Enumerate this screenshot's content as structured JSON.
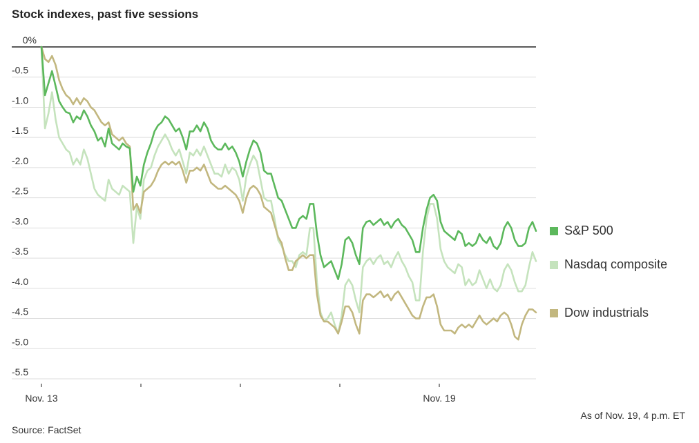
{
  "chart_data": {
    "type": "line",
    "title": "Stock indexes, past five sessions",
    "ylim": [
      -5.5,
      0
    ],
    "yticks": [
      {
        "value": 0,
        "label": "0%"
      },
      {
        "value": -0.5,
        "label": "-0.5"
      },
      {
        "value": -1.0,
        "label": "-1.0"
      },
      {
        "value": -1.5,
        "label": "-1.5"
      },
      {
        "value": -2.0,
        "label": "-2.0"
      },
      {
        "value": -2.5,
        "label": "-2.5"
      },
      {
        "value": -3.0,
        "label": "-3.0"
      },
      {
        "value": -3.5,
        "label": "-3.5"
      },
      {
        "value": -4.0,
        "label": "-4.0"
      },
      {
        "value": -4.5,
        "label": "-4.5"
      },
      {
        "value": -5.0,
        "label": "-5.0"
      },
      {
        "value": -5.5,
        "label": "-5.5"
      }
    ],
    "sessions": 5,
    "session_labels": [
      "Nov. 13",
      "",
      "",
      "",
      "Nov. 19"
    ],
    "series": [
      {
        "name": "S&P 500",
        "color": "#5cb85c",
        "values": [
          0,
          -0.8,
          -0.6,
          -0.4,
          -0.65,
          -0.9,
          -1.0,
          -1.08,
          -1.1,
          -1.25,
          -1.15,
          -1.2,
          -1.05,
          -1.15,
          -1.3,
          -1.4,
          -1.55,
          -1.5,
          -1.65,
          -1.35,
          -1.6,
          -1.65,
          -1.7,
          -1.6,
          -1.65,
          -1.68,
          -2.4,
          -2.15,
          -2.3,
          -1.95,
          -1.75,
          -1.6,
          -1.4,
          -1.3,
          -1.25,
          -1.15,
          -1.2,
          -1.3,
          -1.4,
          -1.35,
          -1.5,
          -1.7,
          -1.4,
          -1.4,
          -1.3,
          -1.4,
          -1.25,
          -1.35,
          -1.55,
          -1.65,
          -1.7,
          -1.7,
          -1.6,
          -1.7,
          -1.65,
          -1.75,
          -1.9,
          -2.15,
          -1.9,
          -1.7,
          -1.55,
          -1.6,
          -1.75,
          -2.05,
          -2.1,
          -2.1,
          -2.3,
          -2.5,
          -2.55,
          -2.7,
          -2.85,
          -3.0,
          -3.0,
          -2.85,
          -2.8,
          -2.85,
          -2.6,
          -2.6,
          -3.1,
          -3.45,
          -3.65,
          -3.6,
          -3.55,
          -3.7,
          -3.85,
          -3.6,
          -3.2,
          -3.15,
          -3.25,
          -3.45,
          -3.6,
          -3.0,
          -2.9,
          -2.88,
          -2.95,
          -2.9,
          -2.85,
          -2.95,
          -2.9,
          -3.0,
          -2.9,
          -2.85,
          -2.95,
          -3.0,
          -3.1,
          -3.2,
          -3.4,
          -3.4,
          -3.0,
          -2.7,
          -2.5,
          -2.45,
          -2.55,
          -2.9,
          -3.05,
          -3.1,
          -3.15,
          -3.2,
          -3.05,
          -3.1,
          -3.3,
          -3.25,
          -3.3,
          -3.25,
          -3.1,
          -3.2,
          -3.25,
          -3.15,
          -3.3,
          -3.35,
          -3.25,
          -3.0,
          -2.9,
          -3.0,
          -3.2,
          -3.3,
          -3.3,
          -3.25,
          -3.0,
          -2.9,
          -3.05
        ]
      },
      {
        "name": "Nasdaq composite",
        "color": "#c5e3bd",
        "values": [
          0,
          -1.35,
          -1.1,
          -0.75,
          -1.2,
          -1.5,
          -1.6,
          -1.7,
          -1.75,
          -1.95,
          -1.85,
          -1.95,
          -1.7,
          -1.85,
          -2.1,
          -2.35,
          -2.45,
          -2.5,
          -2.55,
          -2.2,
          -2.35,
          -2.4,
          -2.45,
          -2.3,
          -2.35,
          -2.4,
          -3.25,
          -2.65,
          -2.85,
          -2.2,
          -2.05,
          -2.0,
          -1.8,
          -1.65,
          -1.55,
          -1.45,
          -1.55,
          -1.7,
          -1.8,
          -1.7,
          -1.9,
          -2.1,
          -1.75,
          -1.8,
          -1.7,
          -1.8,
          -1.65,
          -1.8,
          -1.95,
          -2.1,
          -2.1,
          -2.15,
          -1.95,
          -2.1,
          -2.0,
          -2.05,
          -2.2,
          -2.55,
          -2.15,
          -1.95,
          -1.8,
          -1.9,
          -2.2,
          -2.5,
          -2.55,
          -2.55,
          -2.85,
          -3.2,
          -3.3,
          -3.45,
          -3.55,
          -3.55,
          -3.65,
          -3.45,
          -3.4,
          -3.45,
          -3.0,
          -3.0,
          -3.9,
          -4.4,
          -4.55,
          -4.5,
          -4.4,
          -4.6,
          -4.75,
          -4.45,
          -3.95,
          -3.85,
          -3.95,
          -4.2,
          -4.4,
          -3.65,
          -3.55,
          -3.5,
          -3.6,
          -3.5,
          -3.45,
          -3.6,
          -3.55,
          -3.65,
          -3.5,
          -3.4,
          -3.55,
          -3.65,
          -3.8,
          -3.9,
          -4.2,
          -4.2,
          -3.4,
          -2.85,
          -2.6,
          -2.6,
          -2.85,
          -3.35,
          -3.55,
          -3.65,
          -3.7,
          -3.75,
          -3.6,
          -3.65,
          -3.95,
          -3.85,
          -3.95,
          -3.9,
          -3.7,
          -3.85,
          -4.0,
          -3.85,
          -4.0,
          -4.05,
          -3.95,
          -3.7,
          -3.6,
          -3.7,
          -3.9,
          -4.05,
          -4.05,
          -3.95,
          -3.65,
          -3.4,
          -3.55
        ]
      },
      {
        "name": "Dow industrials",
        "color": "#c2b77f",
        "values": [
          0,
          -0.2,
          -0.25,
          -0.15,
          -0.3,
          -0.55,
          -0.7,
          -0.8,
          -0.85,
          -0.95,
          -0.85,
          -0.95,
          -0.85,
          -0.9,
          -1.0,
          -1.05,
          -1.15,
          -1.25,
          -1.3,
          -1.25,
          -1.45,
          -1.5,
          -1.55,
          -1.5,
          -1.6,
          -1.65,
          -2.7,
          -2.6,
          -2.75,
          -2.4,
          -2.35,
          -2.3,
          -2.2,
          -2.05,
          -1.95,
          -1.9,
          -1.95,
          -1.9,
          -1.95,
          -1.9,
          -2.05,
          -2.25,
          -2.05,
          -2.05,
          -2.0,
          -2.05,
          -1.95,
          -2.1,
          -2.25,
          -2.3,
          -2.35,
          -2.35,
          -2.3,
          -2.35,
          -2.4,
          -2.45,
          -2.55,
          -2.75,
          -2.5,
          -2.35,
          -2.3,
          -2.35,
          -2.45,
          -2.65,
          -2.7,
          -2.75,
          -2.95,
          -3.15,
          -3.25,
          -3.5,
          -3.7,
          -3.7,
          -3.55,
          -3.5,
          -3.45,
          -3.5,
          -3.45,
          -3.45,
          -4.1,
          -4.45,
          -4.55,
          -4.55,
          -4.6,
          -4.65,
          -4.75,
          -4.55,
          -4.3,
          -4.3,
          -4.4,
          -4.6,
          -4.75,
          -4.2,
          -4.1,
          -4.1,
          -4.15,
          -4.1,
          -4.05,
          -4.15,
          -4.1,
          -4.2,
          -4.1,
          -4.05,
          -4.15,
          -4.25,
          -4.35,
          -4.45,
          -4.5,
          -4.5,
          -4.3,
          -4.15,
          -4.15,
          -4.1,
          -4.3,
          -4.6,
          -4.7,
          -4.7,
          -4.7,
          -4.75,
          -4.65,
          -4.6,
          -4.65,
          -4.6,
          -4.65,
          -4.55,
          -4.45,
          -4.55,
          -4.6,
          -4.55,
          -4.5,
          -4.55,
          -4.45,
          -4.4,
          -4.45,
          -4.6,
          -4.8,
          -4.85,
          -4.6,
          -4.45,
          -4.35,
          -4.35,
          -4.4
        ]
      }
    ],
    "source": "Source: FactSet",
    "footnote": "As of Nov. 19, 4 p.m. ET"
  }
}
